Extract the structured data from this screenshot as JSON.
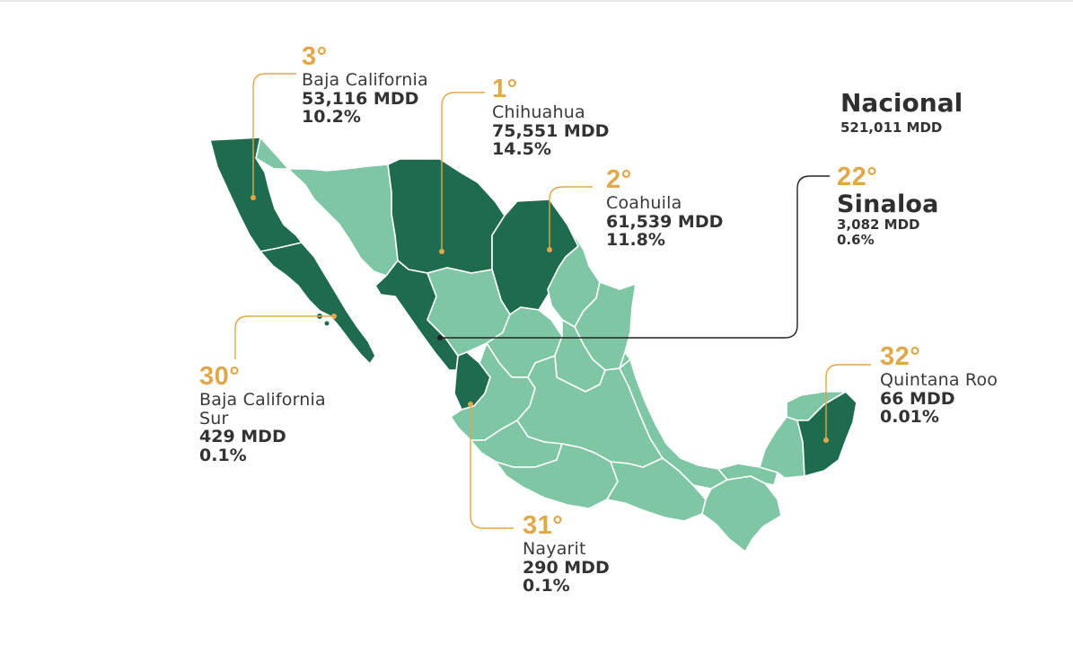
{
  "colors": {
    "state_light": "#7fc6a4",
    "state_dark": "#1e6b4d",
    "border": "#ffffff",
    "rank": "#e0a84b",
    "leader_line": "#e0a84b",
    "sinaloa_leader": "#222222"
  },
  "nacional": {
    "title": "Nacional",
    "value": "521,011 MDD"
  },
  "callouts": {
    "baja_california": {
      "rank": "3°",
      "name": "Baja California",
      "amount": "53,116 MDD",
      "pct": "10.2%"
    },
    "chihuahua": {
      "rank": "1°",
      "name": "Chihuahua",
      "amount": "75,551 MDD",
      "pct": "14.5%"
    },
    "coahuila": {
      "rank": "2°",
      "name": "Coahuila",
      "amount": "61,539 MDD",
      "pct": "11.8%"
    },
    "sinaloa": {
      "rank": "22°",
      "name": "Sinaloa",
      "amount": "3,082 MDD",
      "pct": "0.6%"
    },
    "bcs": {
      "rank": "30°",
      "name_line1": "Baja California",
      "name_line2": "Sur",
      "amount": "429 MDD",
      "pct": "0.1%"
    },
    "nayarit": {
      "rank": "31°",
      "name": "Nayarit",
      "amount": "290 MDD",
      "pct": "0.1%"
    },
    "quintana_roo": {
      "rank": "32°",
      "name": "Quintana Roo",
      "amount": "66 MDD",
      "pct": "0.01%"
    }
  }
}
